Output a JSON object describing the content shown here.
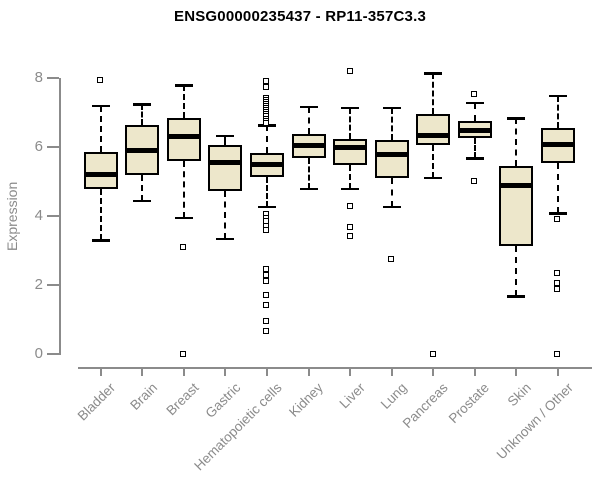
{
  "colors": {
    "background": "#FFFFFF",
    "box_fill": "#EDE7CB",
    "box_border": "#000000",
    "median": "#000000",
    "axis": "#8B8B8B",
    "title_text": "#000000"
  },
  "chart_data": {
    "type": "boxplot",
    "title": "ENSG00000235437 - RP11-357C3.3",
    "ylabel": "Expression",
    "xlabel": "",
    "ylim": [
      0,
      8.3
    ],
    "yticks": [
      0,
      2,
      4,
      6,
      8
    ],
    "grid": false,
    "legend": "none",
    "categories": [
      "Bladder",
      "Brain",
      "Breast",
      "Gastric",
      "Hematopoietic cells",
      "Kidney",
      "Liver",
      "Lung",
      "Pancreas",
      "Prostate",
      "Skin",
      "Unknown / Other"
    ],
    "boxes": [
      {
        "category": "Bladder",
        "lower_whisker": 3.3,
        "q1": 4.78,
        "median": 5.22,
        "q3": 5.85,
        "upper_whisker": 7.2,
        "outliers": [
          7.95
        ]
      },
      {
        "category": "Brain",
        "lower_whisker": 4.45,
        "q1": 5.2,
        "median": 5.9,
        "q3": 6.65,
        "upper_whisker": 7.25,
        "outliers": []
      },
      {
        "category": "Breast",
        "lower_whisker": 3.95,
        "q1": 5.6,
        "median": 6.32,
        "q3": 6.85,
        "upper_whisker": 7.8,
        "outliers": [
          3.08,
          0.0
        ]
      },
      {
        "category": "Gastric",
        "lower_whisker": 3.35,
        "q1": 4.73,
        "median": 5.55,
        "q3": 6.07,
        "upper_whisker": 6.33,
        "outliers": []
      },
      {
        "category": "Hematopoietic cells",
        "lower_whisker": 4.27,
        "q1": 5.13,
        "median": 5.49,
        "q3": 5.83,
        "upper_whisker": 6.64,
        "outliers": [
          7.92,
          7.73,
          7.42,
          7.36,
          7.3,
          7.24,
          7.18,
          7.12,
          7.06,
          7.0,
          6.94,
          6.88,
          6.82,
          6.76,
          6.7,
          4.05,
          3.92,
          3.84,
          3.71,
          3.58,
          2.46,
          2.28,
          2.11,
          1.71,
          1.42,
          0.93,
          0.64
        ]
      },
      {
        "category": "Kidney",
        "lower_whisker": 4.8,
        "q1": 5.68,
        "median": 6.06,
        "q3": 6.38,
        "upper_whisker": 7.18,
        "outliers": []
      },
      {
        "category": "Liver",
        "lower_whisker": 4.8,
        "q1": 5.48,
        "median": 6.0,
        "q3": 6.23,
        "upper_whisker": 7.15,
        "outliers": [
          8.2,
          4.28,
          3.68,
          3.42
        ]
      },
      {
        "category": "Lung",
        "lower_whisker": 4.27,
        "q1": 5.12,
        "median": 5.8,
        "q3": 6.2,
        "upper_whisker": 7.15,
        "outliers": [
          2.75
        ]
      },
      {
        "category": "Pancreas",
        "lower_whisker": 5.12,
        "q1": 6.06,
        "median": 6.35,
        "q3": 6.98,
        "upper_whisker": 8.15,
        "outliers": [
          0.0
        ]
      },
      {
        "category": "Prostate",
        "lower_whisker": 5.68,
        "q1": 6.28,
        "median": 6.48,
        "q3": 6.77,
        "upper_whisker": 7.3,
        "outliers": [
          7.52,
          5.02
        ]
      },
      {
        "category": "Skin",
        "lower_whisker": 1.68,
        "q1": 3.13,
        "median": 4.9,
        "q3": 5.46,
        "upper_whisker": 6.84,
        "outliers": []
      },
      {
        "category": "Unknown / Other",
        "lower_whisker": 4.08,
        "q1": 5.53,
        "median": 6.08,
        "q3": 6.57,
        "upper_whisker": 7.5,
        "outliers": [
          3.91,
          2.34,
          2.05,
          1.88,
          0.0
        ]
      }
    ]
  }
}
